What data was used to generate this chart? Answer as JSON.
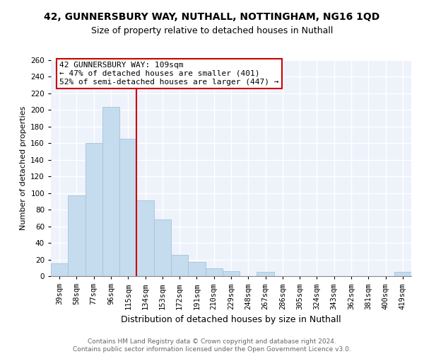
{
  "title": "42, GUNNERSBURY WAY, NUTHALL, NOTTINGHAM, NG16 1QD",
  "subtitle": "Size of property relative to detached houses in Nuthall",
  "xlabel": "Distribution of detached houses by size in Nuthall",
  "ylabel": "Number of detached properties",
  "bar_labels": [
    "39sqm",
    "58sqm",
    "77sqm",
    "96sqm",
    "115sqm",
    "134sqm",
    "153sqm",
    "172sqm",
    "191sqm",
    "210sqm",
    "229sqm",
    "248sqm",
    "267sqm",
    "286sqm",
    "305sqm",
    "324sqm",
    "343sqm",
    "362sqm",
    "381sqm",
    "400sqm",
    "419sqm"
  ],
  "bar_values": [
    15,
    97,
    160,
    204,
    165,
    91,
    68,
    26,
    17,
    9,
    6,
    0,
    5,
    0,
    0,
    0,
    0,
    0,
    0,
    0,
    5
  ],
  "bar_color": "#c5dcee",
  "bar_edge_color": "#a0c4dc",
  "vline_x_idx": 4,
  "vline_color": "#cc0000",
  "annotation_line1": "42 GUNNERSBURY WAY: 109sqm",
  "annotation_line2": "← 47% of detached houses are smaller (401)",
  "annotation_line3": "52% of semi-detached houses are larger (447) →",
  "annotation_box_color": "white",
  "annotation_box_edge_color": "#cc0000",
  "ylim": [
    0,
    260
  ],
  "yticks": [
    0,
    20,
    40,
    60,
    80,
    100,
    120,
    140,
    160,
    180,
    200,
    220,
    240,
    260
  ],
  "footnote1": "Contains HM Land Registry data © Crown copyright and database right 2024.",
  "footnote2": "Contains public sector information licensed under the Open Government Licence v3.0.",
  "bg_color": "#eef2fb",
  "grid_color": "white",
  "title_fontsize": 10,
  "subtitle_fontsize": 9,
  "ylabel_fontsize": 8,
  "xlabel_fontsize": 9,
  "tick_fontsize": 7.5,
  "annot_fontsize": 8,
  "footnote_fontsize": 6.5,
  "footnote_color": "#666666"
}
